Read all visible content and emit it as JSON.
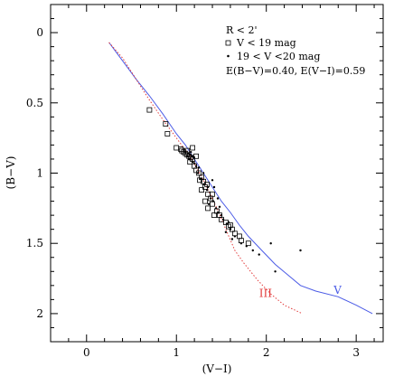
{
  "chart_data": {
    "type": "scatter",
    "xlabel": "(V−I)",
    "ylabel": "(B−V)",
    "xlim": [
      -0.4,
      3.3
    ],
    "ylim": [
      2.2,
      -0.2
    ],
    "y_inverted": true,
    "x_ticks": [
      0,
      1,
      2,
      3
    ],
    "y_ticks": [
      0,
      0.5,
      1,
      1.5,
      2
    ],
    "x_tick_labels": [
      "0",
      "1",
      "2",
      "3"
    ],
    "y_tick_labels": [
      "0",
      "0.5",
      "1",
      "1.5",
      "2"
    ],
    "grid": false,
    "legend": {
      "placement": "top-right",
      "lines": [
        "R < 2'",
        "V < 19 mag",
        "19 < V <20 mag",
        "E(B−V)=0.40,  E(V−I)=0.59"
      ]
    },
    "curve_labels": {
      "V": "V",
      "III": "III"
    },
    "colors": {
      "V_curve": "#4b5be6",
      "III_curve": "#e23b3b",
      "points": "#000000"
    },
    "series": [
      {
        "name": "V",
        "kind": "line",
        "style": "solid",
        "points": [
          [
            0.25,
            0.07
          ],
          [
            0.4,
            0.2
          ],
          [
            0.55,
            0.33
          ],
          [
            0.7,
            0.45
          ],
          [
            0.85,
            0.58
          ],
          [
            1.0,
            0.72
          ],
          [
            1.1,
            0.8
          ],
          [
            1.2,
            0.9
          ],
          [
            1.3,
            1.0
          ],
          [
            1.4,
            1.1
          ],
          [
            1.5,
            1.2
          ],
          [
            1.6,
            1.28
          ],
          [
            1.7,
            1.37
          ],
          [
            1.8,
            1.45
          ],
          [
            1.95,
            1.55
          ],
          [
            2.1,
            1.65
          ],
          [
            2.25,
            1.73
          ],
          [
            2.38,
            1.8
          ],
          [
            2.55,
            1.84
          ],
          [
            2.8,
            1.88
          ],
          [
            3.0,
            1.94
          ],
          [
            3.18,
            2.0
          ]
        ]
      },
      {
        "name": "III",
        "kind": "line",
        "style": "dotted",
        "points": [
          [
            0.25,
            0.07
          ],
          [
            0.4,
            0.18
          ],
          [
            0.55,
            0.33
          ],
          [
            0.7,
            0.48
          ],
          [
            0.85,
            0.62
          ],
          [
            1.0,
            0.75
          ],
          [
            1.15,
            0.88
          ],
          [
            1.3,
            1.05
          ],
          [
            1.45,
            1.25
          ],
          [
            1.55,
            1.4
          ],
          [
            1.65,
            1.55
          ],
          [
            1.75,
            1.64
          ],
          [
            1.9,
            1.76
          ],
          [
            2.05,
            1.86
          ],
          [
            2.2,
            1.94
          ],
          [
            2.4,
            2.0
          ]
        ]
      },
      {
        "name": "V < 19 mag",
        "kind": "scatter",
        "marker": "open-square",
        "points": [
          [
            0.7,
            0.55
          ],
          [
            0.88,
            0.65
          ],
          [
            0.9,
            0.72
          ],
          [
            1.0,
            0.82
          ],
          [
            1.05,
            0.83
          ],
          [
            1.08,
            0.85
          ],
          [
            1.1,
            0.86
          ],
          [
            1.12,
            0.87
          ],
          [
            1.14,
            0.88
          ],
          [
            1.16,
            0.89
          ],
          [
            1.18,
            0.9
          ],
          [
            1.12,
            0.84
          ],
          [
            1.15,
            0.92
          ],
          [
            1.2,
            0.95
          ],
          [
            1.22,
            0.98
          ],
          [
            1.25,
            1.0
          ],
          [
            1.28,
            1.03
          ],
          [
            1.3,
            1.06
          ],
          [
            1.32,
            1.1
          ],
          [
            1.35,
            1.15
          ],
          [
            1.38,
            1.18
          ],
          [
            1.4,
            1.22
          ],
          [
            1.28,
            1.12
          ],
          [
            1.32,
            1.2
          ],
          [
            1.35,
            1.25
          ],
          [
            1.42,
            1.3
          ],
          [
            1.45,
            1.27
          ],
          [
            1.48,
            1.3
          ],
          [
            1.5,
            1.33
          ],
          [
            1.55,
            1.35
          ],
          [
            1.58,
            1.38
          ],
          [
            1.62,
            1.4
          ],
          [
            1.65,
            1.43
          ],
          [
            1.7,
            1.45
          ],
          [
            1.72,
            1.48
          ],
          [
            1.8,
            1.5
          ],
          [
            1.6,
            1.37
          ],
          [
            1.18,
            0.82
          ],
          [
            1.22,
            0.88
          ],
          [
            1.06,
            0.84
          ],
          [
            1.4,
            1.15
          ],
          [
            1.34,
            1.08
          ],
          [
            1.26,
            1.05
          ]
        ]
      },
      {
        "name": "19 < V <20 mag",
        "kind": "scatter",
        "marker": "dot",
        "points": [
          [
            1.1,
            0.85
          ],
          [
            1.13,
            0.86
          ],
          [
            1.15,
            0.87
          ],
          [
            1.17,
            0.88
          ],
          [
            1.19,
            0.89
          ],
          [
            1.14,
            0.9
          ],
          [
            1.18,
            0.92
          ],
          [
            1.2,
            0.93
          ],
          [
            1.12,
            0.88
          ],
          [
            1.16,
            0.85
          ],
          [
            1.24,
            1.0
          ],
          [
            1.27,
            1.04
          ],
          [
            1.3,
            1.08
          ],
          [
            1.34,
            1.12
          ],
          [
            1.38,
            1.18
          ],
          [
            1.41,
            1.2
          ],
          [
            1.44,
            1.25
          ],
          [
            1.46,
            1.28
          ],
          [
            1.52,
            1.33
          ],
          [
            1.56,
            1.36
          ],
          [
            1.6,
            1.4
          ],
          [
            1.65,
            1.45
          ],
          [
            1.72,
            1.5
          ],
          [
            1.78,
            1.52
          ],
          [
            1.85,
            1.55
          ],
          [
            1.92,
            1.58
          ],
          [
            2.05,
            1.5
          ],
          [
            2.1,
            1.7
          ],
          [
            2.38,
            1.55
          ],
          [
            1.4,
            1.05
          ],
          [
            1.36,
            1.22
          ],
          [
            1.48,
            1.24
          ],
          [
            1.55,
            1.42
          ],
          [
            1.25,
            0.96
          ],
          [
            1.3,
            1.0
          ],
          [
            1.22,
            0.95
          ],
          [
            1.5,
            1.3
          ],
          [
            1.62,
            1.47
          ],
          [
            1.42,
            1.1
          ],
          [
            1.35,
            1.1
          ],
          [
            1.46,
            1.18
          ],
          [
            1.58,
            1.35
          ]
        ]
      }
    ]
  }
}
